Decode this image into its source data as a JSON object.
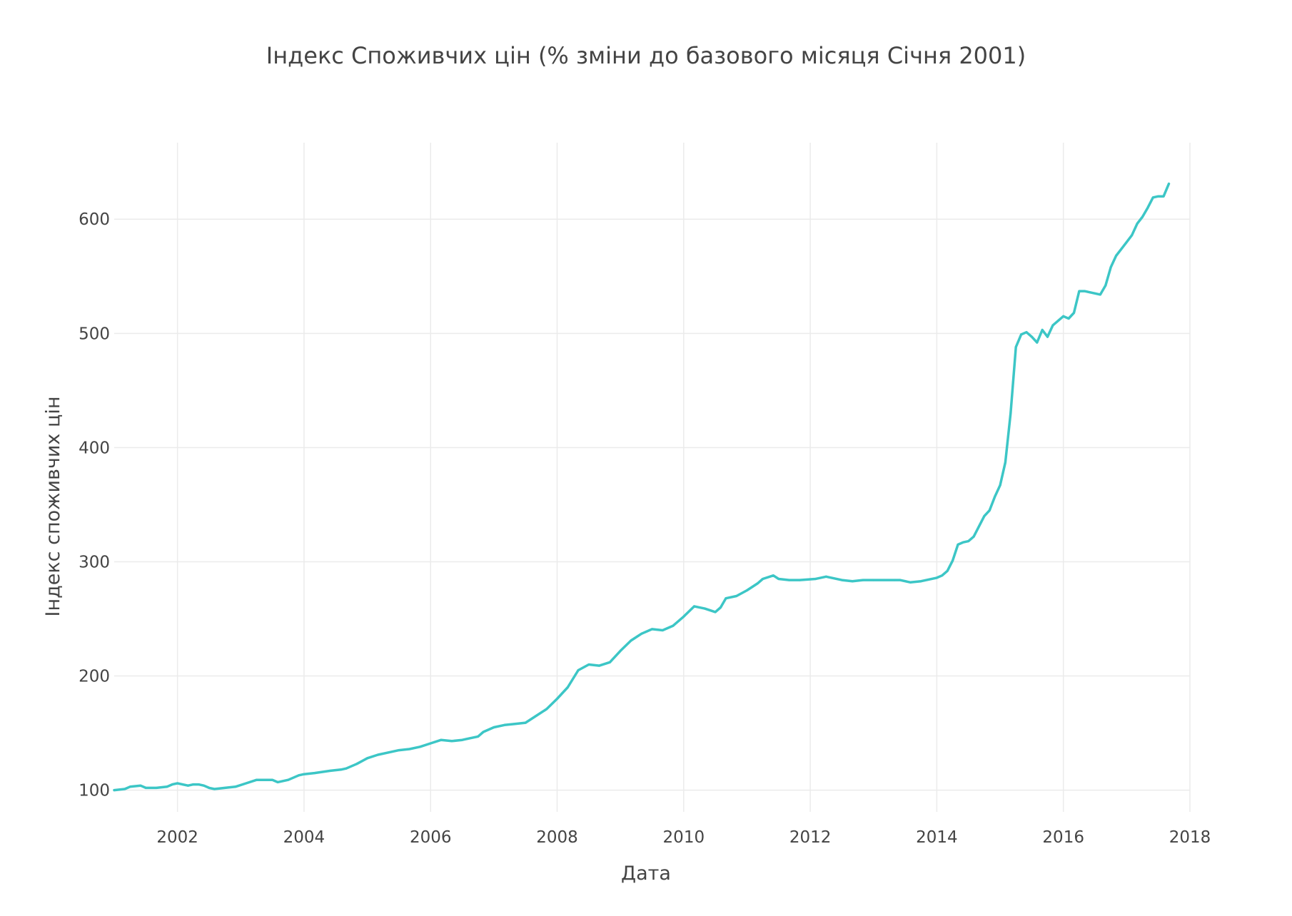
{
  "chart_data": {
    "type": "line",
    "title": "Індекс Споживчих цін (% зміни до базового місяця Січня 2001)",
    "xlabel": "Дата",
    "ylabel": "Індекс споживчих цін",
    "x_axis": {
      "type": "date",
      "range": [
        "2001-01",
        "2018-01"
      ],
      "ticks": [
        "2002",
        "2004",
        "2006",
        "2008",
        "2010",
        "2012",
        "2014",
        "2016",
        "2018"
      ]
    },
    "y_axis": {
      "range": [
        81,
        667
      ],
      "ticks": [
        100,
        200,
        300,
        400,
        500,
        600
      ]
    },
    "grid": true,
    "legend": "none",
    "series": [
      {
        "color": "#3cc6c6",
        "points": [
          [
            "2001-01",
            100
          ],
          [
            "2001-03",
            101
          ],
          [
            "2001-04",
            103
          ],
          [
            "2001-06",
            104
          ],
          [
            "2001-07",
            102
          ],
          [
            "2001-09",
            102
          ],
          [
            "2001-11",
            103
          ],
          [
            "2001-12",
            105
          ],
          [
            "2002-01",
            106
          ],
          [
            "2002-03",
            104
          ],
          [
            "2002-04",
            105
          ],
          [
            "2002-05",
            105
          ],
          [
            "2002-06",
            104
          ],
          [
            "2002-07",
            102
          ],
          [
            "2002-08",
            101
          ],
          [
            "2002-10",
            102
          ],
          [
            "2002-12",
            103
          ],
          [
            "2003-02",
            106
          ],
          [
            "2003-04",
            109
          ],
          [
            "2003-06",
            109
          ],
          [
            "2003-07",
            109
          ],
          [
            "2003-08",
            107
          ],
          [
            "2003-10",
            109
          ],
          [
            "2003-12",
            113
          ],
          [
            "2004-01",
            114
          ],
          [
            "2004-03",
            115
          ],
          [
            "2004-06",
            117
          ],
          [
            "2004-08",
            118
          ],
          [
            "2004-09",
            119
          ],
          [
            "2004-11",
            123
          ],
          [
            "2005-01",
            128
          ],
          [
            "2005-03",
            131
          ],
          [
            "2005-05",
            133
          ],
          [
            "2005-07",
            135
          ],
          [
            "2005-09",
            136
          ],
          [
            "2005-11",
            138
          ],
          [
            "2006-01",
            141
          ],
          [
            "2006-03",
            144
          ],
          [
            "2006-05",
            143
          ],
          [
            "2006-07",
            144
          ],
          [
            "2006-08",
            145
          ],
          [
            "2006-10",
            147
          ],
          [
            "2006-11",
            151
          ],
          [
            "2007-01",
            155
          ],
          [
            "2007-03",
            157
          ],
          [
            "2007-05",
            158
          ],
          [
            "2007-07",
            159
          ],
          [
            "2007-09",
            165
          ],
          [
            "2007-11",
            171
          ],
          [
            "2008-01",
            180
          ],
          [
            "2008-03",
            190
          ],
          [
            "2008-05",
            205
          ],
          [
            "2008-07",
            210
          ],
          [
            "2008-09",
            209
          ],
          [
            "2008-11",
            212
          ],
          [
            "2009-01",
            222
          ],
          [
            "2009-03",
            231
          ],
          [
            "2009-05",
            237
          ],
          [
            "2009-07",
            241
          ],
          [
            "2009-09",
            240
          ],
          [
            "2009-11",
            244
          ],
          [
            "2010-01",
            252
          ],
          [
            "2010-03",
            261
          ],
          [
            "2010-05",
            259
          ],
          [
            "2010-07",
            256
          ],
          [
            "2010-08",
            260
          ],
          [
            "2010-09",
            268
          ],
          [
            "2010-11",
            270
          ],
          [
            "2011-01",
            275
          ],
          [
            "2011-03",
            281
          ],
          [
            "2011-04",
            285
          ],
          [
            "2011-06",
            288
          ],
          [
            "2011-07",
            285
          ],
          [
            "2011-09",
            284
          ],
          [
            "2011-11",
            284
          ],
          [
            "2012-02",
            285
          ],
          [
            "2012-04",
            287
          ],
          [
            "2012-07",
            284
          ],
          [
            "2012-09",
            283
          ],
          [
            "2012-11",
            284
          ],
          [
            "2013-01",
            284
          ],
          [
            "2013-03",
            284
          ],
          [
            "2013-05",
            284
          ],
          [
            "2013-06",
            284
          ],
          [
            "2013-08",
            282
          ],
          [
            "2013-10",
            283
          ],
          [
            "2014-01",
            286
          ],
          [
            "2014-02",
            288
          ],
          [
            "2014-03",
            292
          ],
          [
            "2014-04",
            301
          ],
          [
            "2014-05",
            315
          ],
          [
            "2014-06",
            317
          ],
          [
            "2014-07",
            318
          ],
          [
            "2014-08",
            322
          ],
          [
            "2014-09",
            331
          ],
          [
            "2014-10",
            340
          ],
          [
            "2014-11",
            345
          ],
          [
            "2014-12",
            357
          ],
          [
            "2015-01",
            367
          ],
          [
            "2015-02",
            387
          ],
          [
            "2015-03",
            430
          ],
          [
            "2015-04",
            488
          ],
          [
            "2015-05",
            499
          ],
          [
            "2015-06",
            501
          ],
          [
            "2015-07",
            497
          ],
          [
            "2015-08",
            492
          ],
          [
            "2015-09",
            503
          ],
          [
            "2015-10",
            497
          ],
          [
            "2015-11",
            507
          ],
          [
            "2015-12",
            511
          ],
          [
            "2016-01",
            515
          ],
          [
            "2016-02",
            513
          ],
          [
            "2016-03",
            518
          ],
          [
            "2016-04",
            537
          ],
          [
            "2016-05",
            537
          ],
          [
            "2016-06",
            536
          ],
          [
            "2016-07",
            535
          ],
          [
            "2016-08",
            534
          ],
          [
            "2016-09",
            542
          ],
          [
            "2016-10",
            558
          ],
          [
            "2016-11",
            568
          ],
          [
            "2016-12",
            574
          ],
          [
            "2017-01",
            580
          ],
          [
            "2017-02",
            586
          ],
          [
            "2017-03",
            596
          ],
          [
            "2017-04",
            602
          ],
          [
            "2017-05",
            610
          ],
          [
            "2017-06",
            619
          ],
          [
            "2017-07",
            620
          ],
          [
            "2017-08",
            620
          ],
          [
            "2017-09",
            631
          ]
        ]
      }
    ]
  }
}
